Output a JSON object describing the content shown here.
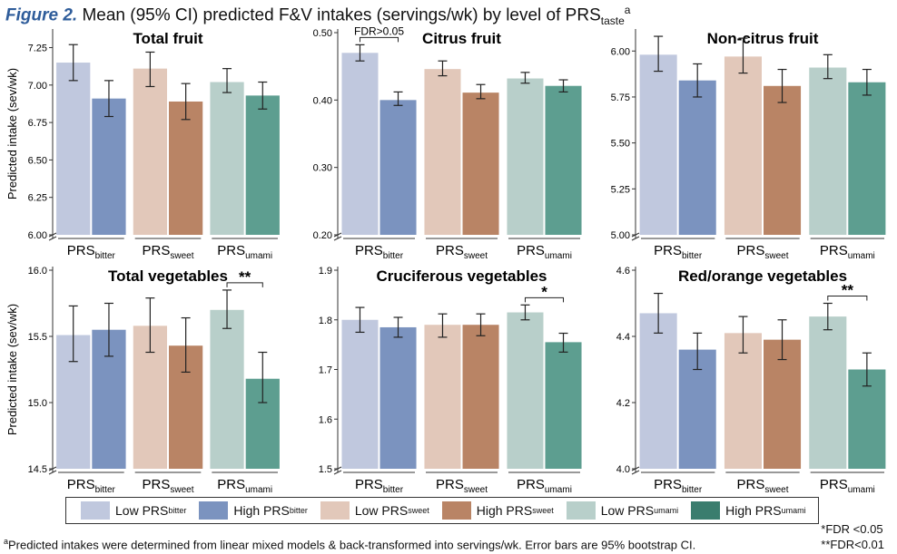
{
  "header": {
    "fig_label": "Figure 2.",
    "title_main": " Mean (95% CI) predicted F&V intakes (servings/wk) by level of PRS",
    "title_sub": "taste",
    "title_sup": "a"
  },
  "chart_data": [
    {
      "type": "bar",
      "title": "Total fruit",
      "ylabel": "Predicted intake (sev/wk)",
      "ylim": [
        6.0,
        7.35
      ],
      "yticks": [
        "6.00",
        "6.25",
        "6.50",
        "6.75",
        "7.00",
        "7.25"
      ],
      "groups": [
        {
          "label": "PRS",
          "sub": "bitter"
        },
        {
          "label": "PRS",
          "sub": "sweet"
        },
        {
          "label": "PRS",
          "sub": "umami"
        }
      ],
      "bars": [
        {
          "group": 0,
          "level": "low",
          "value": 7.15,
          "ci": [
            7.03,
            7.27
          ]
        },
        {
          "group": 0,
          "level": "high",
          "value": 6.91,
          "ci": [
            6.79,
            7.03
          ]
        },
        {
          "group": 1,
          "level": "low",
          "value": 7.11,
          "ci": [
            6.99,
            7.22
          ]
        },
        {
          "group": 1,
          "level": "high",
          "value": 6.89,
          "ci": [
            6.77,
            7.01
          ]
        },
        {
          "group": 2,
          "level": "low",
          "value": 7.02,
          "ci": [
            6.95,
            7.11
          ]
        },
        {
          "group": 2,
          "level": "high",
          "value": 6.93,
          "ci": [
            6.84,
            7.02
          ]
        }
      ],
      "annotation": null
    },
    {
      "type": "bar",
      "title": "Citrus fruit",
      "ylabel": "",
      "ylim": [
        0.2,
        0.5
      ],
      "yticks": [
        "0.20",
        "0.30",
        "0.40",
        "0.50"
      ],
      "groups": [
        {
          "label": "PRS",
          "sub": "bitter"
        },
        {
          "label": "PRS",
          "sub": "sweet"
        },
        {
          "label": "PRS",
          "sub": "umami"
        }
      ],
      "bars": [
        {
          "group": 0,
          "level": "low",
          "value": 0.47,
          "ci": [
            0.458,
            0.482
          ]
        },
        {
          "group": 0,
          "level": "high",
          "value": 0.4,
          "ci": [
            0.392,
            0.412
          ]
        },
        {
          "group": 1,
          "level": "low",
          "value": 0.446,
          "ci": [
            0.436,
            0.458
          ]
        },
        {
          "group": 1,
          "level": "high",
          "value": 0.411,
          "ci": [
            0.402,
            0.423
          ]
        },
        {
          "group": 2,
          "level": "low",
          "value": 0.432,
          "ci": [
            0.425,
            0.441
          ]
        },
        {
          "group": 2,
          "level": "high",
          "value": 0.421,
          "ci": [
            0.412,
            0.43
          ]
        }
      ],
      "annotation": {
        "group": 0,
        "text": "FDR>0.05"
      }
    },
    {
      "type": "bar",
      "title": "Non-citrus fruit",
      "ylabel": "",
      "ylim": [
        5.0,
        6.1
      ],
      "yticks": [
        "5.00",
        "5.25",
        "5.50",
        "5.75",
        "6.00"
      ],
      "groups": [
        {
          "label": "PRS",
          "sub": "bitter"
        },
        {
          "label": "PRS",
          "sub": "sweet"
        },
        {
          "label": "PRS",
          "sub": "umami"
        }
      ],
      "bars": [
        {
          "group": 0,
          "level": "low",
          "value": 5.98,
          "ci": [
            5.89,
            6.08
          ]
        },
        {
          "group": 0,
          "level": "high",
          "value": 5.84,
          "ci": [
            5.75,
            5.93
          ]
        },
        {
          "group": 1,
          "level": "low",
          "value": 5.97,
          "ci": [
            5.88,
            6.07
          ]
        },
        {
          "group": 1,
          "level": "high",
          "value": 5.81,
          "ci": [
            5.72,
            5.9
          ]
        },
        {
          "group": 2,
          "level": "low",
          "value": 5.91,
          "ci": [
            5.85,
            5.98
          ]
        },
        {
          "group": 2,
          "level": "high",
          "value": 5.83,
          "ci": [
            5.76,
            5.9
          ]
        }
      ],
      "annotation": null
    },
    {
      "type": "bar",
      "title": "Total vegetables",
      "ylabel": "Predicted intake (sev/wk)",
      "ylim": [
        14.5,
        16.0
      ],
      "yticks": [
        "14.5",
        "15.0",
        "15.5",
        "16.0"
      ],
      "groups": [
        {
          "label": "PRS",
          "sub": "bitter"
        },
        {
          "label": "PRS",
          "sub": "sweet"
        },
        {
          "label": "PRS",
          "sub": "umami"
        }
      ],
      "bars": [
        {
          "group": 0,
          "level": "low",
          "value": 15.51,
          "ci": [
            15.31,
            15.73
          ]
        },
        {
          "group": 0,
          "level": "high",
          "value": 15.55,
          "ci": [
            15.35,
            15.75
          ]
        },
        {
          "group": 1,
          "level": "low",
          "value": 15.58,
          "ci": [
            15.38,
            15.79
          ]
        },
        {
          "group": 1,
          "level": "high",
          "value": 15.43,
          "ci": [
            15.23,
            15.64
          ]
        },
        {
          "group": 2,
          "level": "low",
          "value": 15.7,
          "ci": [
            15.56,
            15.85
          ]
        },
        {
          "group": 2,
          "level": "high",
          "value": 15.18,
          "ci": [
            15.0,
            15.38
          ]
        }
      ],
      "annotation": {
        "group": 2,
        "text": "**"
      }
    },
    {
      "type": "bar",
      "title": "Cruciferous vegetables",
      "ylabel": "",
      "ylim": [
        1.5,
        1.9
      ],
      "yticks": [
        "1.5",
        "1.6",
        "1.7",
        "1.8",
        "1.9"
      ],
      "groups": [
        {
          "label": "PRS",
          "sub": "bitter"
        },
        {
          "label": "PRS",
          "sub": "sweet"
        },
        {
          "label": "PRS",
          "sub": "umami"
        }
      ],
      "bars": [
        {
          "group": 0,
          "level": "low",
          "value": 1.8,
          "ci": [
            1.775,
            1.825
          ]
        },
        {
          "group": 0,
          "level": "high",
          "value": 1.785,
          "ci": [
            1.765,
            1.805
          ]
        },
        {
          "group": 1,
          "level": "low",
          "value": 1.79,
          "ci": [
            1.765,
            1.812
          ]
        },
        {
          "group": 1,
          "level": "high",
          "value": 1.79,
          "ci": [
            1.768,
            1.812
          ]
        },
        {
          "group": 2,
          "level": "low",
          "value": 1.815,
          "ci": [
            1.8,
            1.83
          ]
        },
        {
          "group": 2,
          "level": "high",
          "value": 1.755,
          "ci": [
            1.735,
            1.773
          ]
        }
      ],
      "annotation": {
        "group": 2,
        "text": "*"
      }
    },
    {
      "type": "bar",
      "title": "Red/orange vegetables",
      "ylabel": "",
      "ylim": [
        4.0,
        4.6
      ],
      "yticks": [
        "4.0",
        "4.2",
        "4.4",
        "4.6"
      ],
      "groups": [
        {
          "label": "PRS",
          "sub": "bitter"
        },
        {
          "label": "PRS",
          "sub": "sweet"
        },
        {
          "label": "PRS",
          "sub": "umami"
        }
      ],
      "bars": [
        {
          "group": 0,
          "level": "low",
          "value": 4.47,
          "ci": [
            4.41,
            4.53
          ]
        },
        {
          "group": 0,
          "level": "high",
          "value": 4.36,
          "ci": [
            4.3,
            4.41
          ]
        },
        {
          "group": 1,
          "level": "low",
          "value": 4.41,
          "ci": [
            4.35,
            4.46
          ]
        },
        {
          "group": 1,
          "level": "high",
          "value": 4.39,
          "ci": [
            4.33,
            4.45
          ]
        },
        {
          "group": 2,
          "level": "low",
          "value": 4.46,
          "ci": [
            4.42,
            4.5
          ]
        },
        {
          "group": 2,
          "level": "high",
          "value": 4.3,
          "ci": [
            4.25,
            4.35
          ]
        }
      ],
      "annotation": {
        "group": 2,
        "text": "**"
      }
    }
  ],
  "colors": {
    "bitter_low": "#c0c8de",
    "bitter_high": "#7b93bf",
    "sweet_low": "#e2c8ba",
    "sweet_high": "#b98465",
    "umami_low": "#b8cfca",
    "umami_high": "#5d9e90",
    "legend_umami_high": "#3a7d6e"
  },
  "legend": [
    {
      "label": "Low PRS",
      "sub": "bitter",
      "color_key": "bitter_low"
    },
    {
      "label": "High PRS",
      "sub": "bitter",
      "color_key": "bitter_high"
    },
    {
      "label": "Low PRS",
      "sub": "sweet",
      "color_key": "sweet_low"
    },
    {
      "label": "High PRS",
      "sub": "sweet",
      "color_key": "sweet_high"
    },
    {
      "label": "Low PRS",
      "sub": "umami",
      "color_key": "umami_low"
    },
    {
      "label": "High PRS",
      "sub": "umami",
      "color_key": "legend_umami_high"
    }
  ],
  "footnote": {
    "sup": "a",
    "text": "Predicted intakes were determined from linear mixed models & back-transformed into servings/wk. Error bars are 95% bootstrap CI."
  },
  "fdr_notes": [
    "*FDR <0.05",
    "**FDR<0.01"
  ]
}
